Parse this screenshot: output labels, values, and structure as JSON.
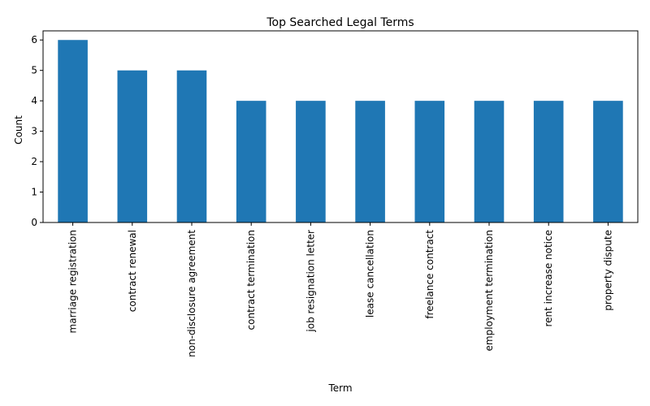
{
  "chart_data": {
    "type": "bar",
    "title": "Top Searched Legal Terms",
    "xlabel": "Term",
    "ylabel": "Count",
    "ylim": [
      0,
      6.3
    ],
    "yticks": [
      0,
      1,
      2,
      3,
      4,
      5,
      6
    ],
    "grid": false,
    "bar_color": "#1f77b4",
    "categories": [
      "marriage registration",
      "contract renewal",
      "non-disclosure agreement",
      "contract termination",
      "job resignation letter",
      "lease cancellation",
      "freelance contract",
      "employment termination",
      "rent increase notice",
      "property dispute"
    ],
    "values": [
      6,
      5,
      5,
      4,
      4,
      4,
      4,
      4,
      4,
      4
    ]
  }
}
